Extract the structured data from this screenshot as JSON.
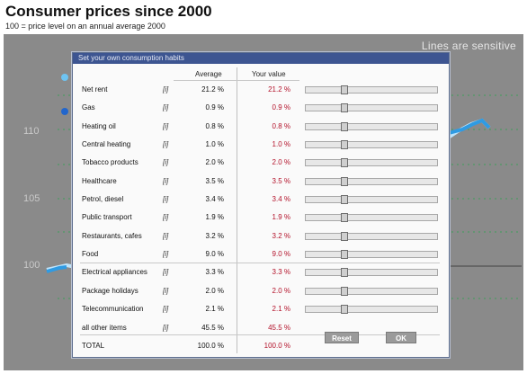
{
  "title": "Consumer prices since 2000",
  "subtitle": "100 = price level on an annual average 2000",
  "chart": {
    "sensitive_text": "Lines are sensitive",
    "y_labels": [
      "110",
      "105",
      "100"
    ],
    "colors": {
      "background": "#8a8a8a",
      "line_light": "#bfe4fb",
      "line_dark": "#2f9be3",
      "legend_light": "#6ec4f2",
      "legend_dark": "#2266cc"
    }
  },
  "dialog": {
    "title": "Set your own consumption habits",
    "col_average": "Average",
    "col_your_value": "Your value",
    "info_icon": "[i]",
    "rows": [
      {
        "label": "Net rent",
        "average": "21.2 %",
        "your": "21.2 %",
        "slider": 0.28
      },
      {
        "label": "Gas",
        "average": "0.9 %",
        "your": "0.9 %",
        "slider": 0.28
      },
      {
        "label": "Heating oil",
        "average": "0.8 %",
        "your": "0.8 %",
        "slider": 0.28
      },
      {
        "label": "Central heating",
        "average": "1.0 %",
        "your": "1.0 %",
        "slider": 0.28
      },
      {
        "label": "Tobacco products",
        "average": "2.0 %",
        "your": "2.0 %",
        "slider": 0.28
      },
      {
        "label": "Healthcare",
        "average": "3.5 %",
        "your": "3.5 %",
        "slider": 0.28
      },
      {
        "label": "Petrol, diesel",
        "average": "3.4 %",
        "your": "3.4 %",
        "slider": 0.28
      },
      {
        "label": "Public transport",
        "average": "1.9 %",
        "your": "1.9 %",
        "slider": 0.28
      },
      {
        "label": "Restaurants, cafes",
        "average": "3.2 %",
        "your": "3.2 %",
        "slider": 0.28
      },
      {
        "label": "Food",
        "average": "9.0 %",
        "your": "9.0 %",
        "slider": 0.28
      },
      {
        "label": "Electrical appliances",
        "average": "3.3 %",
        "your": "3.3 %",
        "slider": 0.28
      },
      {
        "label": "Package holidays",
        "average": "2.0 %",
        "your": "2.0 %",
        "slider": 0.28
      },
      {
        "label": "Telecommunication",
        "average": "2.1 %",
        "your": "2.1 %",
        "slider": 0.28
      },
      {
        "label": "all other items",
        "average": "45.5 %",
        "your": "45.5 %",
        "slider": null
      }
    ],
    "total": {
      "label": "TOTAL",
      "average": "100.0 %",
      "your": "100.0 %"
    },
    "reset_label": "Reset",
    "ok_label": "OK"
  }
}
